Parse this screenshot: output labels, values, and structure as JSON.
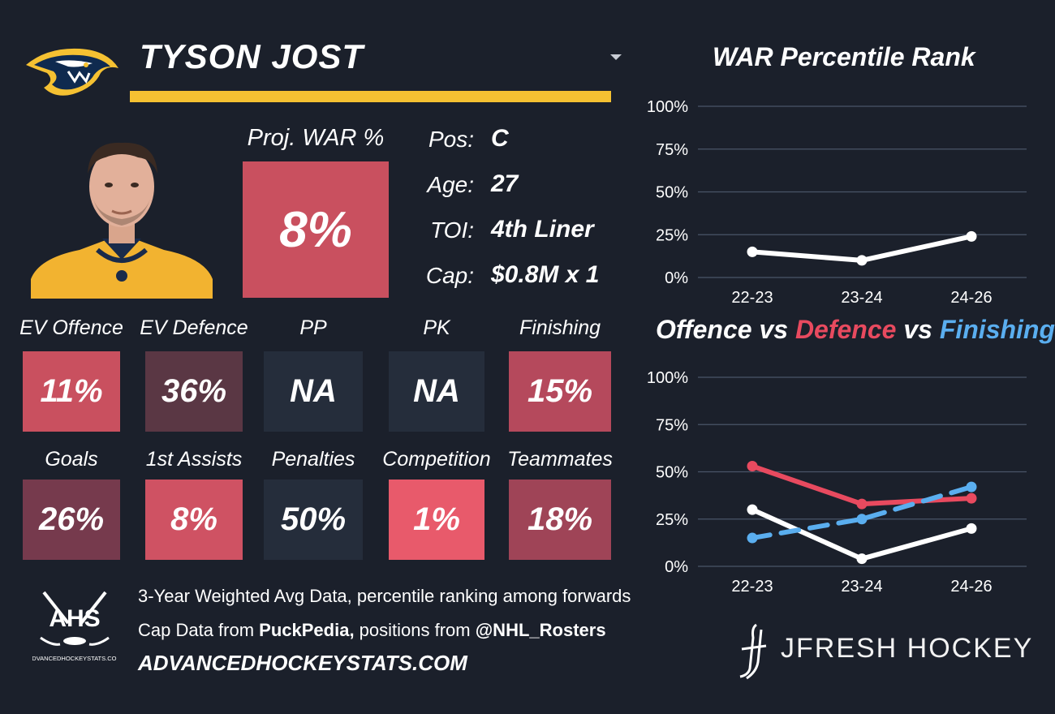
{
  "player": {
    "name": "TYSON JOST"
  },
  "colors": {
    "background": "#1b202b",
    "team_yellow": "#f5c132",
    "offence_red": "#e84a5f",
    "finishing_blue": "#5aaeef",
    "war_line": "#ffffff"
  },
  "war": {
    "label": "Proj. WAR %",
    "value": "8%"
  },
  "info": [
    {
      "label": "Pos:",
      "value": "C"
    },
    {
      "label": "Age:",
      "value": "27"
    },
    {
      "label": "TOI:",
      "value": "4th Liner"
    },
    {
      "label": "Cap:",
      "value": "$0.8M x 1"
    }
  ],
  "stats": [
    {
      "label": "EV Offence",
      "value": "11%",
      "color": "#c9505f"
    },
    {
      "label": "EV Defence",
      "value": "36%",
      "color": "#5a3744"
    },
    {
      "label": "PP",
      "value": "NA",
      "color": "#252d3b"
    },
    {
      "label": "PK",
      "value": "NA",
      "color": "#252d3b"
    },
    {
      "label": "Finishing",
      "value": "15%",
      "color": "#b5495c"
    },
    {
      "label": "Goals",
      "value": "26%",
      "color": "#763a4d"
    },
    {
      "label": "1st Assists",
      "value": "8%",
      "color": "#cf5263"
    },
    {
      "label": "Penalties",
      "value": "50%",
      "color": "#252d3b"
    },
    {
      "label": "Competition",
      "value": "1%",
      "color": "#e85a6b"
    },
    {
      "label": "Teammates",
      "value": "18%",
      "color": "#9f4457"
    }
  ],
  "footer": {
    "line1": "3-Year Weighted Avg Data, percentile ranking among forwards",
    "line2_prefix": "Cap Data from ",
    "line2_source": "PuckPedia,",
    "line2_middle": " positions from ",
    "line2_handle": "@NHL_Rosters",
    "site": "ADVANCEDHOCKEYSTATS.COM",
    "ahs_logo_text": "AHS",
    "ahs_logo_subtext": "ADVANCEDHOCKEYSTATS.COM",
    "brand": "JFRESH HOCKEY"
  },
  "chart_data": [
    {
      "type": "line",
      "title": "WAR Percentile Rank",
      "categories": [
        "22-23",
        "23-24",
        "24-26"
      ],
      "yticks": [
        "0%",
        "25%",
        "50%",
        "75%",
        "100%"
      ],
      "ylim": [
        0,
        100
      ],
      "grid": true,
      "series": [
        {
          "values": [
            15,
            10,
            24
          ],
          "color": "#ffffff",
          "dashed": false
        }
      ]
    },
    {
      "type": "line",
      "title_parts": [
        "Offence",
        " vs ",
        "Defence",
        " vs ",
        "Finishing"
      ],
      "categories": [
        "22-23",
        "23-24",
        "24-26"
      ],
      "yticks": [
        "0%",
        "25%",
        "50%",
        "75%",
        "100%"
      ],
      "ylim": [
        0,
        100
      ],
      "grid": true,
      "series": [
        {
          "values": [
            30,
            4,
            20
          ],
          "color": "#ffffff",
          "dashed": false
        },
        {
          "values": [
            53,
            33,
            36
          ],
          "color": "#e84a5f",
          "dashed": false
        },
        {
          "values": [
            15,
            25,
            42
          ],
          "color": "#5aaeef",
          "dashed": true
        }
      ]
    }
  ]
}
